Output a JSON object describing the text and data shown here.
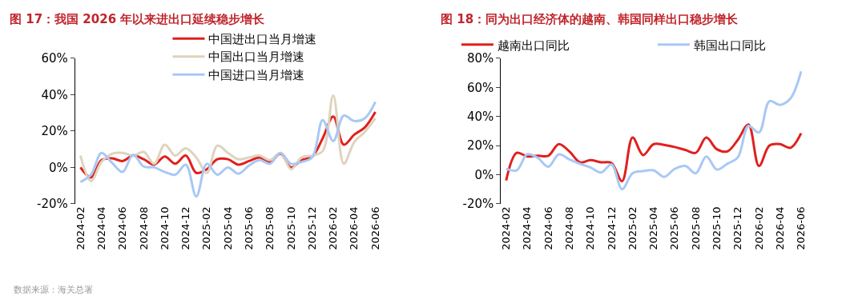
{
  "chart_data": [
    {
      "type": "line",
      "title": "图 17：我国 2026 年以来进出口延续稳步增长",
      "categories": [
        "2024-02",
        null,
        "2024-04",
        null,
        "2024-06",
        null,
        "2024-08",
        null,
        "2024-10",
        null,
        "2024-12",
        null,
        "2025-02",
        null,
        "2025-04",
        null,
        "2025-06",
        null,
        "2025-08",
        null,
        "2025-10",
        null,
        "2025-12",
        null,
        "2026-02",
        null,
        "2026-04",
        null,
        "2026-06"
      ],
      "series": [
        {
          "name": "中国进出口当月增速",
          "color": "#e0201e",
          "values": [
            0,
            -5.5,
            4,
            5,
            3.5,
            6.5,
            4.5,
            1.5,
            6,
            2,
            6.5,
            -3,
            -1,
            4.5,
            4.5,
            1.5,
            3.5,
            5.5,
            3,
            7.5,
            0,
            4,
            6,
            16,
            28,
            12.5,
            18,
            22,
            30.5
          ]
        },
        {
          "name": "中国出口当月增速",
          "color": "#ded3bd",
          "values": [
            6.5,
            -7.5,
            3,
            7.5,
            8,
            6.5,
            8.5,
            2,
            12.5,
            6.5,
            10.5,
            5.5,
            -3,
            12,
            8,
            4.5,
            5.5,
            6.5,
            4,
            8,
            -1,
            5.5,
            6.5,
            9,
            39.5,
            2,
            14,
            19.5,
            27
          ]
        },
        {
          "name": "中国进口当月增速",
          "color": "#a9c8f5",
          "values": [
            -8,
            -4,
            8,
            2.5,
            -2.5,
            7,
            0.5,
            0,
            -2.5,
            -4,
            1.5,
            -16,
            2,
            -4,
            0,
            -3.5,
            1,
            4,
            2,
            8,
            2,
            3,
            5.5,
            26,
            14.5,
            28.5,
            25.5,
            27,
            36
          ]
        }
      ],
      "ylim": [
        -20,
        60
      ],
      "yticks": [
        {
          "value": -20,
          "label": "-20%"
        },
        {
          "value": 0,
          "label": "0%"
        },
        {
          "value": 20,
          "label": "20%"
        },
        {
          "value": 40,
          "label": "40%"
        },
        {
          "value": 60,
          "label": "60%"
        }
      ],
      "legend": "top",
      "annotations": [
        "数据来源：海关总署"
      ]
    },
    {
      "type": "line",
      "title": "图 18：同为出口经济体的越南、韩国同样出口稳步增长",
      "categories": [
        "2024-02",
        null,
        "2024-04",
        null,
        "2024-06",
        null,
        "2024-08",
        null,
        "2024-10",
        null,
        "2024-12",
        null,
        "2025-02",
        null,
        "2025-04",
        null,
        "2025-06",
        null,
        "2025-08",
        null,
        "2025-10",
        null,
        "2025-12",
        null,
        "2026-02",
        null,
        "2026-04",
        null,
        "2026-06"
      ],
      "series": [
        {
          "name": "越南出口同比",
          "color": "#e0201e",
          "values": [
            -4,
            15,
            12.5,
            13,
            13,
            21,
            16,
            8.5,
            10,
            8.5,
            8,
            -4.5,
            25.5,
            13.5,
            21,
            20.5,
            19,
            17,
            15,
            25.5,
            17.5,
            16,
            24,
            34.5,
            6,
            20,
            21,
            18.5,
            28.5
          ]
        },
        {
          "name": "韩国出口同比",
          "color": "#a9c8f5",
          "values": [
            4,
            3,
            14,
            11.5,
            5.5,
            14,
            10.5,
            7.5,
            5,
            1.5,
            7,
            -10,
            1,
            2.5,
            3,
            -1.5,
            4,
            6,
            1,
            12.5,
            3.5,
            7.5,
            12,
            33.5,
            29,
            50.5,
            48,
            52.5,
            71
          ]
        }
      ],
      "ylim": [
        -20,
        80
      ],
      "yticks": [
        {
          "value": -20,
          "label": "-20%"
        },
        {
          "value": 0,
          "label": "0%"
        },
        {
          "value": 20,
          "label": "20%"
        },
        {
          "value": 40,
          "label": "40%"
        },
        {
          "value": 60,
          "label": "60%"
        },
        {
          "value": 80,
          "label": "80%"
        }
      ],
      "legend": "top"
    }
  ]
}
